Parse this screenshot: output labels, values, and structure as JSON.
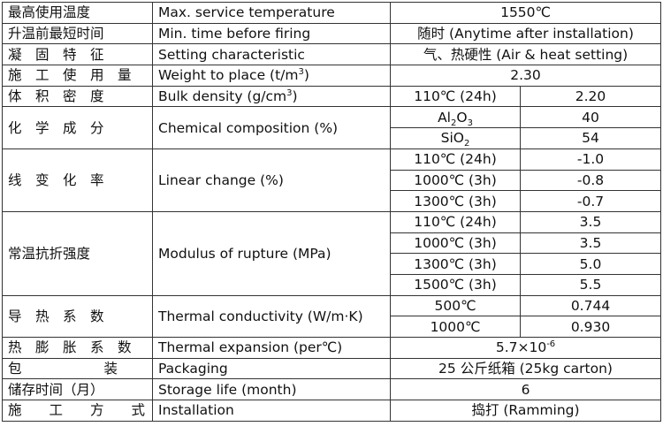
{
  "rows": {
    "max_temp": {
      "zh": "最高使用温度",
      "en": "Max. service temperature",
      "value": "1550℃"
    },
    "min_time": {
      "zh": "升温前最短时间",
      "en": "Min. time before firing",
      "value": "随时 (Anytime after installation)"
    },
    "setting": {
      "zh": "凝　固　特　征",
      "en": "Setting characteristic",
      "value": "气、热硬性 (Air & heat setting)"
    },
    "weight": {
      "zh": "施　工　使　用　量",
      "en_pre": "Weight to place (t/m",
      "en_sup": "3",
      "en_post": ")",
      "value": "2.30"
    },
    "bulk": {
      "zh": "体　积　密　度",
      "en_pre": "Bulk density (g/cm",
      "en_sup": "3",
      "en_post": ")",
      "cond": "110℃ (24h)",
      "value": "2.20"
    },
    "chem": {
      "zh": "化　学　成　分",
      "en": "Chemical composition (%)",
      "items": [
        {
          "pre": "Al",
          "sub": "2",
          "mid": "O",
          "sub2": "3",
          "value": "40"
        },
        {
          "pre": "SiO",
          "sub": "2",
          "mid": "",
          "sub2": "",
          "value": "54"
        }
      ]
    },
    "linear": {
      "zh": "线　变　化　率",
      "en": "Linear change (%)",
      "items": [
        {
          "cond": "110℃ (24h)",
          "value": "-1.0"
        },
        {
          "cond": "1000℃ (3h)",
          "value": "-0.8"
        },
        {
          "cond": "1300℃ (3h)",
          "value": "-0.7"
        }
      ]
    },
    "rupture": {
      "zh": "常温抗折强度",
      "en": "Modulus of rupture (MPa)",
      "items": [
        {
          "cond": "110℃ (24h)",
          "value": "3.5"
        },
        {
          "cond": "1000℃ (3h)",
          "value": "3.5"
        },
        {
          "cond": "1300℃ (3h)",
          "value": "5.0"
        },
        {
          "cond": "1500℃ (3h)",
          "value": "5.5"
        }
      ]
    },
    "thermal": {
      "zh": "导　热　系　数",
      "en": "Thermal conductivity (W/m·K)",
      "items": [
        {
          "cond": "500℃",
          "value": "0.744"
        },
        {
          "cond": "1000℃",
          "value": "0.930"
        }
      ]
    },
    "expansion": {
      "zh": "热　膨　胀　系　数",
      "en": "Thermal expansion (per℃)",
      "value_pre": "5.7×10",
      "value_sup": "-6"
    },
    "packaging": {
      "zh": "包　　　　　　装",
      "en": "Packaging",
      "value": "25 公斤纸箱 (25kg carton)"
    },
    "shelf": {
      "zh": "储存时间（月）",
      "en": "Storage life (month)",
      "value": "6"
    },
    "install": {
      "zh": "施　　工　　方　　式",
      "en": "Installation",
      "value": "捣打 (Ramming)"
    }
  }
}
